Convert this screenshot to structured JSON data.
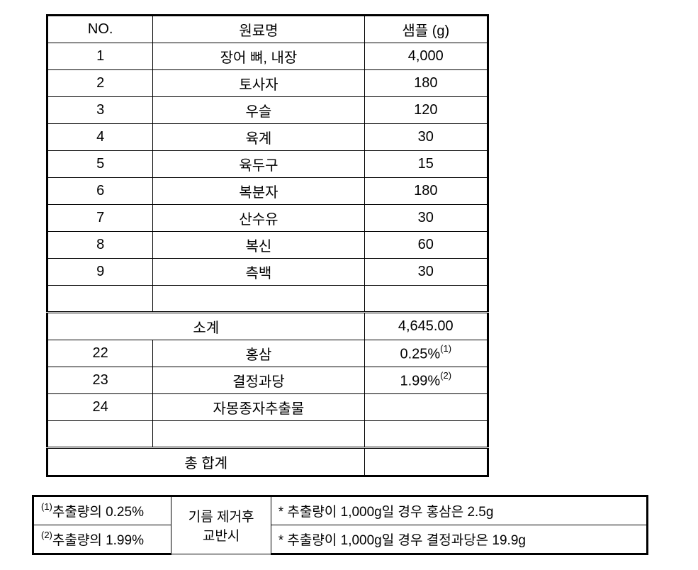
{
  "main_table": {
    "headers": {
      "no": "NO.",
      "name": "원료명",
      "sample": "샘플 (g)"
    },
    "rows": [
      {
        "no": "1",
        "name": "장어 뼈, 내장",
        "sample": "4,000"
      },
      {
        "no": "2",
        "name": "토사자",
        "sample": "180"
      },
      {
        "no": "3",
        "name": "우슬",
        "sample": "120"
      },
      {
        "no": "4",
        "name": "육계",
        "sample": "30"
      },
      {
        "no": "5",
        "name": "육두구",
        "sample": "15"
      },
      {
        "no": "6",
        "name": "복분자",
        "sample": "180"
      },
      {
        "no": "7",
        "name": "산수유",
        "sample": "30"
      },
      {
        "no": "8",
        "name": "복신",
        "sample": "60"
      },
      {
        "no": "9",
        "name": "측백",
        "sample": "30"
      }
    ],
    "subtotal": {
      "label": "소계",
      "value": "4,645.00"
    },
    "additional_rows": [
      {
        "no": "22",
        "name": "홍삼",
        "sample": "0.25%",
        "sup": "(1)"
      },
      {
        "no": "23",
        "name": "결정과당",
        "sample": "1.99%",
        "sup": "(2)"
      },
      {
        "no": "24",
        "name": "자몽종자추출물",
        "sample": ""
      }
    ],
    "total": {
      "label": "총 합계",
      "value": ""
    }
  },
  "notes_table": {
    "row1": {
      "sup": "(1)",
      "col1": "추출량의  0.25%",
      "col2": "기름 제거후",
      "col3": "*   추출량이 1,000g일 경우 홍삼은 2.5g"
    },
    "row2": {
      "sup": "(2)",
      "col1": "추출량의 1.99%",
      "col2": "교반시",
      "col3": "* 추출량이 1,000g일 경우 결정과당은  19.9g"
    }
  },
  "colors": {
    "background": "#ffffff",
    "border": "#000000",
    "text": "#000000"
  },
  "typography": {
    "main_fontsize": 20,
    "sup_fontsize": 13,
    "notes_fontsize": 19
  }
}
